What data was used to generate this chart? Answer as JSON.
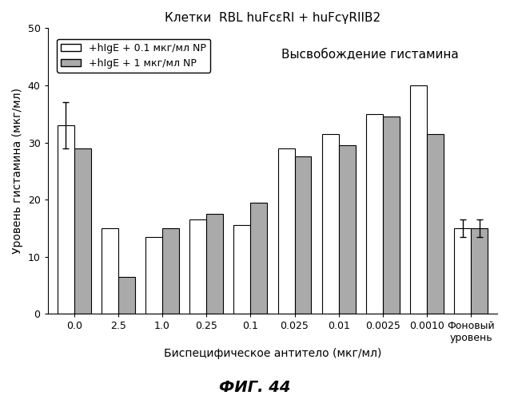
{
  "title": "Клетки  RBL huFcεRI + huFcγRIIB2",
  "subtitle": "Высвобождение гистамина",
  "xlabel": "Биспецифическое антитело (мкг/мл)",
  "ylabel": "Уровень гистамина (мкг/мл)",
  "fig_label": "ФИГ. 44",
  "categories": [
    "0.0",
    "2.5",
    "1.0",
    "0.25",
    "0.1",
    "0.025",
    "0.01",
    "0.0025",
    "0.0010",
    "Фоновый\nуровень"
  ],
  "series1_label": "+hIgE + 0.1 мкг/мл NP",
  "series2_label": "+hIgE + 1 мкг/мл NP",
  "series1_values": [
    33.0,
    15.0,
    13.5,
    16.5,
    15.5,
    29.0,
    31.5,
    35.0,
    40.0,
    15.0
  ],
  "series2_values": [
    29.0,
    6.5,
    15.0,
    17.5,
    19.5,
    27.5,
    29.5,
    34.5,
    31.5,
    15.0
  ],
  "series1_errors": [
    4.0,
    0.0,
    0.0,
    0.0,
    0.0,
    0.0,
    0.0,
    0.0,
    0.0,
    1.5
  ],
  "series2_errors": [
    0.0,
    0.0,
    0.0,
    0.0,
    0.0,
    0.0,
    0.0,
    0.0,
    0.0,
    1.5
  ],
  "ylim": [
    0,
    50
  ],
  "yticks": [
    0,
    10,
    20,
    30,
    40,
    50
  ],
  "bar_width": 0.38,
  "color_series1": "#ffffff",
  "color_series2": "#aaaaaa",
  "edge_color": "#000000",
  "background_color": "#ffffff",
  "title_fontsize": 11,
  "axis_label_fontsize": 10,
  "tick_fontsize": 9,
  "legend_fontsize": 9,
  "subtitle_fontsize": 11
}
